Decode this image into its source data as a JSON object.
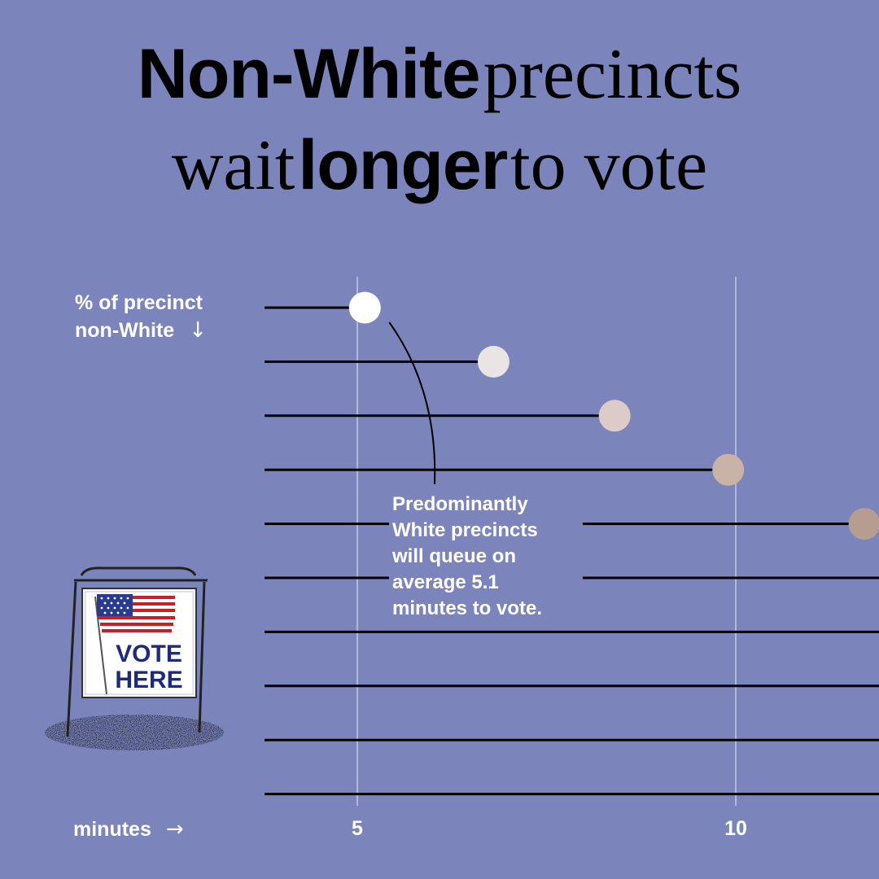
{
  "title": {
    "line1_bold": "Non-White",
    "line1_regular": "precincts",
    "line2_regular_a": "wait",
    "line2_bold": "longer",
    "line2_regular_b": "to vote"
  },
  "y_axis_label": {
    "line1": "% of precinct",
    "line2": "non-White",
    "arrow": "↓"
  },
  "x_axis_label": {
    "text": "minutes",
    "arrow": "→"
  },
  "annotation": {
    "text_lines": [
      "Predominantly",
      "White precincts",
      "will queue on",
      "average 5.1",
      "minutes to vote."
    ]
  },
  "sign": {
    "line1": "VOTE",
    "line2": "HERE"
  },
  "colors": {
    "background": "#7b85bb",
    "line": "#000000",
    "gridline": "#c5cae6",
    "dots": [
      "#ffffff",
      "#ebe4e4",
      "#dccbc6",
      "#c8b3a6",
      "#b59e91"
    ]
  },
  "chart_data": {
    "type": "scatter",
    "title": "Non-White precincts wait longer to vote",
    "xlabel": "minutes",
    "ylabel": "% of precinct non-White",
    "xlim": [
      3.8,
      12.8
    ],
    "x_ticks": [
      5,
      10
    ],
    "rows": 10,
    "points": [
      {
        "row": 0,
        "x": 5.1
      },
      {
        "row": 1,
        "x": 6.8
      },
      {
        "row": 2,
        "x": 8.4
      },
      {
        "row": 3,
        "x": 9.9
      },
      {
        "row": 4,
        "x": 11.7
      }
    ],
    "grid": "vertical at ticks"
  }
}
